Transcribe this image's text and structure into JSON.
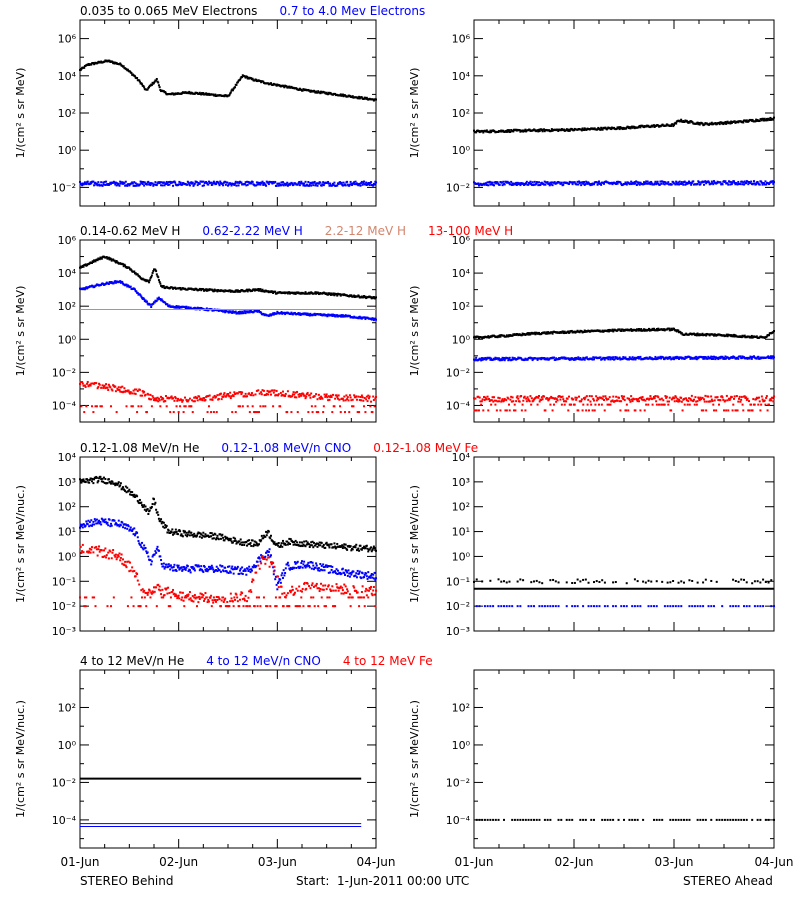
{
  "colors": {
    "black": "#000000",
    "blue": "#0000ff",
    "tan": "#d2866e",
    "red": "#ff0000"
  },
  "footer": {
    "left": "STEREO Behind",
    "center": "Start:  1-Jun-2011 00:00 UTC",
    "right": "STEREO Ahead"
  },
  "chart_data": [
    {
      "type": "scatter",
      "panel": "row1-behind",
      "titles": [
        {
          "text": "0.035 to 0.065 MeV Electrons",
          "color": "black"
        },
        {
          "text": "0.7 to 4.0 Mev Electrons",
          "color": "blue"
        }
      ],
      "ylabel": "1/(cm² s sr MeV)",
      "yscale": "log",
      "ylim_exp": [
        -3,
        7
      ],
      "ytick_exps": [
        -2,
        0,
        2,
        4,
        6
      ],
      "xlim_days": [
        0,
        3
      ],
      "series": [
        {
          "color": "black",
          "x": [
            0,
            0.08,
            0.18,
            0.28,
            0.42,
            0.55,
            0.62,
            0.67,
            0.72,
            0.78,
            0.82,
            0.9,
            1.1,
            1.3,
            1.5,
            1.65,
            1.75,
            1.9,
            2.1,
            2.3,
            2.6,
            2.8,
            3.0
          ],
          "logy": [
            4.3,
            4.6,
            4.7,
            4.8,
            4.6,
            4.0,
            3.6,
            3.2,
            3.5,
            3.8,
            3.2,
            3.0,
            3.1,
            3.0,
            2.9,
            4.0,
            3.8,
            3.6,
            3.4,
            3.2,
            3.0,
            2.85,
            2.7
          ],
          "scatter": 0.05
        },
        {
          "color": "blue",
          "x": [
            0,
            3
          ],
          "logy": [
            -1.8,
            -1.8
          ],
          "scatter": 0.12
        }
      ]
    },
    {
      "type": "scatter",
      "panel": "row1-ahead",
      "ylabel": "1/(cm² s sr MeV)",
      "yscale": "log",
      "ylim_exp": [
        -3,
        7
      ],
      "ytick_exps": [
        -2,
        0,
        2,
        4,
        6
      ],
      "xlim_days": [
        0,
        3
      ],
      "series": [
        {
          "color": "black",
          "x": [
            0,
            0.5,
            1.0,
            1.5,
            1.8,
            2.0,
            2.05,
            2.3,
            2.6,
            3.0
          ],
          "logy": [
            1.0,
            1.05,
            1.1,
            1.2,
            1.3,
            1.35,
            1.6,
            1.4,
            1.5,
            1.7
          ],
          "scatter": 0.06
        },
        {
          "color": "blue",
          "x": [
            0,
            3
          ],
          "logy": [
            -1.8,
            -1.75
          ],
          "scatter": 0.1
        }
      ]
    },
    {
      "type": "scatter",
      "panel": "row2-behind",
      "titles": [
        {
          "text": "0.14-0.62 MeV H",
          "color": "black"
        },
        {
          "text": "0.62-2.22 MeV H",
          "color": "blue"
        },
        {
          "text": "2.2-12 MeV H",
          "color": "tan"
        },
        {
          "text": "13-100 MeV H",
          "color": "red"
        }
      ],
      "ylabel": "1/(cm² s sr MeV)",
      "yscale": "log",
      "ylim_exp": [
        -5,
        6
      ],
      "ytick_exps": [
        -4,
        -2,
        0,
        2,
        4,
        6
      ],
      "xlim_days": [
        0,
        3
      ],
      "series": [
        {
          "color": "black",
          "x": [
            0,
            0.1,
            0.25,
            0.4,
            0.5,
            0.62,
            0.7,
            0.76,
            0.82,
            0.9,
            1.2,
            1.6,
            1.8,
            2.0,
            2.4,
            2.8,
            3.0
          ],
          "logy": [
            4.3,
            4.6,
            5.0,
            4.6,
            4.3,
            3.7,
            3.5,
            4.3,
            3.2,
            3.1,
            3.0,
            2.9,
            3.0,
            2.8,
            2.8,
            2.6,
            2.5
          ],
          "scatter": 0.06
        },
        {
          "color": "blue",
          "x": [
            0,
            0.2,
            0.4,
            0.55,
            0.65,
            0.72,
            0.8,
            0.9,
            1.3,
            1.6,
            1.8,
            1.9,
            2.0,
            2.3,
            2.7,
            3.0
          ],
          "logy": [
            3.0,
            3.3,
            3.5,
            3.0,
            2.4,
            2.0,
            2.5,
            2.0,
            1.8,
            1.6,
            1.7,
            1.4,
            1.6,
            1.5,
            1.4,
            1.2
          ],
          "scatter": 0.06
        },
        {
          "color": "tan",
          "x": [
            0,
            3
          ],
          "logy": [
            1.8,
            1.8
          ],
          "scatter": 0
        },
        {
          "color": "red",
          "x": [
            0,
            0.3,
            0.6,
            0.75,
            0.9,
            1.2,
            1.5,
            1.8,
            2.1,
            2.5,
            3.0
          ],
          "logy": [
            -2.7,
            -2.9,
            -3.2,
            -3.6,
            -3.6,
            -3.6,
            -3.4,
            -3.2,
            -3.3,
            -3.5,
            -3.6
          ],
          "scatter": 0.18,
          "floor": -4.4
        }
      ]
    },
    {
      "type": "scatter",
      "panel": "row2-ahead",
      "ylabel": "1/(cm² s sr MeV)",
      "yscale": "log",
      "ylim_exp": [
        -5,
        6
      ],
      "ytick_exps": [
        -4,
        -2,
        0,
        2,
        4,
        6
      ],
      "xlim_days": [
        0,
        3
      ],
      "series": [
        {
          "color": "black",
          "x": [
            0,
            0.3,
            0.6,
            1.0,
            1.5,
            2.0,
            2.1,
            2.2,
            2.5,
            2.9,
            3.0
          ],
          "logy": [
            0.1,
            0.2,
            0.35,
            0.45,
            0.55,
            0.6,
            0.3,
            0.3,
            0.25,
            0.1,
            0.5
          ],
          "scatter": 0.06
        },
        {
          "color": "blue",
          "x": [
            0,
            3
          ],
          "logy": [
            -1.2,
            -1.1
          ],
          "scatter": 0.08
        },
        {
          "color": "red",
          "x": [
            0,
            3
          ],
          "logy": [
            -3.6,
            -3.6
          ],
          "scatter": 0.18,
          "floor": -4.3
        }
      ]
    },
    {
      "type": "scatter",
      "panel": "row3-behind",
      "titles": [
        {
          "text": "0.12-1.08 MeV/n He",
          "color": "black"
        },
        {
          "text": "0.12-1.08 MeV/n CNO",
          "color": "blue"
        },
        {
          "text": "0.12-1.08 MeV Fe",
          "color": "red"
        }
      ],
      "ylabel": "1/(cm² s sr MeV/nuc.)",
      "yscale": "log",
      "ylim_exp": [
        -3,
        4
      ],
      "ytick_exps": [
        -3,
        -2,
        -1,
        0,
        1,
        2,
        3,
        4
      ],
      "xlim_days": [
        0,
        3
      ],
      "series": [
        {
          "color": "black",
          "x": [
            0,
            0.2,
            0.35,
            0.5,
            0.62,
            0.7,
            0.75,
            0.8,
            0.9,
            1.1,
            1.4,
            1.6,
            1.8,
            1.9,
            2.0,
            2.1,
            2.3,
            2.6,
            3.0
          ],
          "logy": [
            3.0,
            3.1,
            3.0,
            2.6,
            2.2,
            1.7,
            2.3,
            1.5,
            1.0,
            0.9,
            0.8,
            0.6,
            0.5,
            1.0,
            0.4,
            0.6,
            0.5,
            0.4,
            0.3
          ],
          "scatter": 0.12
        },
        {
          "color": "blue",
          "x": [
            0,
            0.2,
            0.4,
            0.55,
            0.65,
            0.72,
            0.78,
            0.85,
            1.0,
            1.4,
            1.7,
            1.85,
            1.92,
            2.0,
            2.1,
            2.3,
            2.6,
            3.0
          ],
          "logy": [
            1.3,
            1.4,
            1.3,
            1.0,
            0.3,
            -0.2,
            0.3,
            -0.4,
            -0.5,
            -0.5,
            -0.6,
            0.0,
            0.2,
            -1.2,
            -0.4,
            -0.3,
            -0.6,
            -0.8
          ],
          "scatter": 0.15
        },
        {
          "color": "red",
          "x": [
            0,
            0.2,
            0.4,
            0.55,
            0.62,
            0.7,
            0.8,
            1.0,
            1.4,
            1.7,
            1.85,
            1.95,
            2.05,
            2.3,
            2.6,
            3.0
          ],
          "logy": [
            0.3,
            0.2,
            0.0,
            -0.6,
            -1.2,
            -1.5,
            -1.3,
            -1.6,
            -1.7,
            -1.6,
            -0.1,
            -0.3,
            -1.5,
            -1.2,
            -1.3,
            -1.4
          ],
          "scatter": 0.2,
          "floor": -2.0
        }
      ]
    },
    {
      "type": "scatter",
      "panel": "row3-ahead",
      "ylabel": "1/(cm² s sr MeV/nuc.)",
      "yscale": "log",
      "ylim_exp": [
        -3,
        4
      ],
      "ytick_exps": [
        -3,
        -2,
        -1,
        0,
        1,
        2,
        3,
        4
      ],
      "xlim_days": [
        0,
        3
      ],
      "series": [
        {
          "color": "black",
          "x": [
            0,
            3
          ],
          "logy": [
            -1.3,
            -1.3
          ],
          "scatter": 0
        },
        {
          "color": "black",
          "x": [
            0,
            3
          ],
          "logy": [
            -1.0,
            -1.0
          ],
          "scatter": 0.08,
          "sparse": true
        },
        {
          "color": "blue",
          "x": [
            0,
            3
          ],
          "logy": [
            -2.0,
            -2.0
          ],
          "scatter": 0,
          "sparse": true
        }
      ]
    },
    {
      "type": "scatter",
      "panel": "row4-behind",
      "titles": [
        {
          "text": "4 to 12 MeV/n He",
          "color": "black"
        },
        {
          "text": "4 to 12 MeV/n CNO",
          "color": "blue"
        },
        {
          "text": "4 to 12 MeV Fe",
          "color": "red"
        }
      ],
      "ylabel": "1/(cm² s sr MeV/nuc.)",
      "yscale": "log",
      "ylim_exp": [
        -5.5,
        4
      ],
      "ytick_exps": [
        -4,
        -2,
        0,
        2
      ],
      "xlim_days": [
        0,
        3
      ],
      "series": [
        {
          "color": "black",
          "x": [
            0,
            2.85
          ],
          "logy": [
            -1.8,
            -1.8
          ],
          "scatter": 0
        },
        {
          "color": "blue",
          "x": [
            0,
            2.85
          ],
          "logy": [
            -4.2,
            -4.2
          ],
          "scatter": 0
        },
        {
          "color": "blue",
          "x": [
            0,
            2.85
          ],
          "logy": [
            -4.35,
            -4.35
          ],
          "scatter": 0
        }
      ]
    },
    {
      "type": "scatter",
      "panel": "row4-ahead",
      "ylabel": "1/(cm² s sr MeV/nuc.)",
      "yscale": "log",
      "ylim_exp": [
        -5.5,
        4
      ],
      "ytick_exps": [
        -4,
        -2,
        0,
        2
      ],
      "xlim_days": [
        0,
        3
      ],
      "xtick_labels": [
        "01-Jun",
        "02-Jun",
        "03-Jun",
        "04-Jun"
      ],
      "series": [
        {
          "color": "black",
          "x": [
            0,
            3
          ],
          "logy": [
            -4.0,
            -4.0
          ],
          "scatter": 0,
          "sparse": true
        }
      ]
    }
  ]
}
